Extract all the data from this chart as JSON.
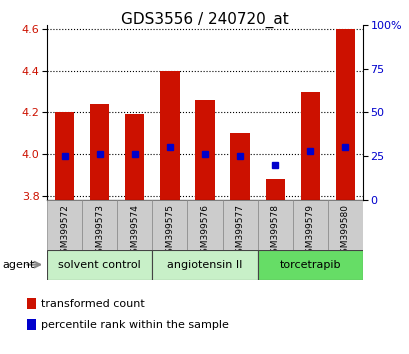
{
  "title": "GDS3556 / 240720_at",
  "samples": [
    "GSM399572",
    "GSM399573",
    "GSM399574",
    "GSM399575",
    "GSM399576",
    "GSM399577",
    "GSM399578",
    "GSM399579",
    "GSM399580"
  ],
  "transformed_count": [
    4.2,
    4.24,
    4.19,
    4.4,
    4.26,
    4.1,
    3.88,
    4.3,
    4.6
  ],
  "percentile_rank": [
    25,
    26,
    26,
    30,
    26,
    25,
    20,
    28,
    30
  ],
  "bar_bottom": 3.78,
  "ylim_left": [
    3.78,
    4.62
  ],
  "ylim_right": [
    0,
    100
  ],
  "yticks_left": [
    3.8,
    4.0,
    4.2,
    4.4,
    4.6
  ],
  "yticks_right": [
    0,
    25,
    50,
    75,
    100
  ],
  "bar_color": "#cc1100",
  "percentile_color": "#0000cc",
  "groups": [
    {
      "label": "solvent control",
      "indices": [
        0,
        1,
        2
      ],
      "color": "#c8f0c8"
    },
    {
      "label": "angiotensin II",
      "indices": [
        3,
        4,
        5
      ],
      "color": "#c8f0c8"
    },
    {
      "label": "torcetrapib",
      "indices": [
        6,
        7,
        8
      ],
      "color": "#66dd66"
    }
  ],
  "legend_items": [
    {
      "label": "transformed count",
      "color": "#cc1100"
    },
    {
      "label": "percentile rank within the sample",
      "color": "#0000cc"
    }
  ],
  "agent_label": "agent",
  "bar_width": 0.55,
  "title_fontsize": 11,
  "tick_fontsize": 8,
  "sample_fontsize": 6.5,
  "group_fontsize": 8,
  "legend_fontsize": 8
}
